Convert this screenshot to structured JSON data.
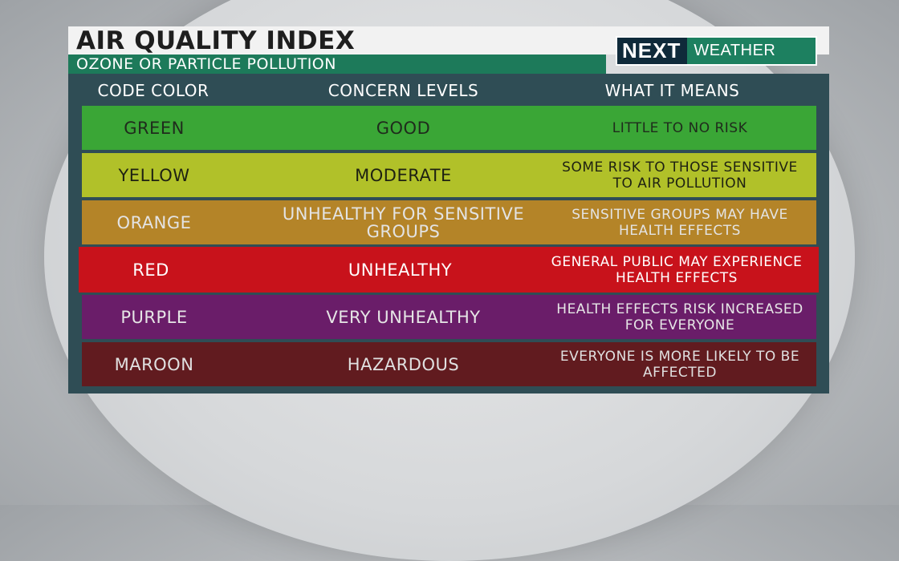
{
  "header": {
    "title": "AIR QUALITY INDEX",
    "subtitle": "OZONE OR PARTICLE POLLUTION"
  },
  "logo": {
    "next": "NEXT",
    "weather": "WEATHER"
  },
  "table": {
    "columns": [
      "CODE COLOR",
      "CONCERN LEVELS",
      "WHAT IT MEANS"
    ],
    "rows": [
      {
        "code": "GREEN",
        "level": "GOOD",
        "meaning": "LITTLE TO NO RISK",
        "bg": "#3aa636",
        "fg": "#1f2b1c"
      },
      {
        "code": "YELLOW",
        "level": "MODERATE",
        "meaning": "SOME RISK TO THOSE SENSITIVE TO AIR POLLUTION",
        "bg": "#b1c129",
        "fg": "#1e2112"
      },
      {
        "code": "ORANGE",
        "level": "UNHEALTHY FOR SENSITIVE GROUPS",
        "meaning": "SENSITIVE GROUPS MAY HAVE HEALTH EFFECTS",
        "bg": "#b48428",
        "fg": "#e3e3e3"
      },
      {
        "code": "RED",
        "level": "UNHEALTHY",
        "meaning": "GENERAL PUBLIC MAY EXPERIENCE HEALTH EFFECTS",
        "bg": "#c8121b",
        "fg": "#ffffff"
      },
      {
        "code": "PURPLE",
        "level": "VERY UNHEALTHY",
        "meaning": "HEALTH EFFECTS RISK INCREASED FOR EVERYONE",
        "bg": "#6a1d69",
        "fg": "#e6e6e6"
      },
      {
        "code": "MAROON",
        "level": "HAZARDOUS",
        "meaning": "EVERYONE IS MORE LIKELY TO BE AFFECTED",
        "bg": "#611b1f",
        "fg": "#e0e0e0"
      }
    ]
  }
}
